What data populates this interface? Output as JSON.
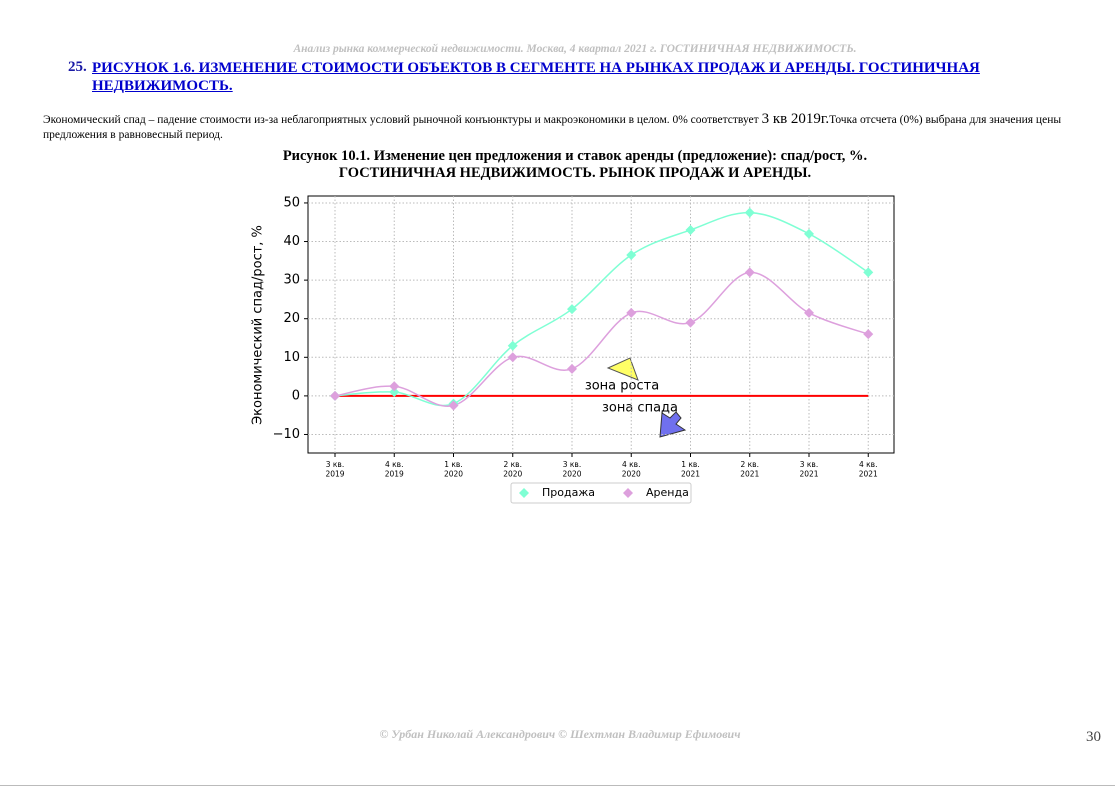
{
  "header": "Анализ рынка коммерческой недвижимости.  Москва, 4 квартал 2021 г.  ГОСТИНИЧНАЯ НЕДВИЖИМОСТЬ.",
  "heading": {
    "number": "25.",
    "title": "РИСУНОК 1.6. ИЗМЕНЕНИЕ СТОИМОСТИ ОБЪЕКТОВ В СЕГМЕНТЕ НА РЫНКАХ ПРОДАЖ И АРЕНДЫ. ГОСТИНИЧНАЯ НЕДВИЖИМОСТЬ."
  },
  "paragraph": [
    "Экономический спад – падение стоимости из-за неблагоприятных условий рыночной конъюнктуры и макроэкономики в целом. 0% соответствует",
    "3 кв 2019г.",
    "Точка отсчета (0%) выбрана для значения цены предложения в равновесный период."
  ],
  "figure_caption": [
    "Рисунок 10.1. Изменение цен предложения и ставок аренды (предложение): спад/рост, %.",
    "ГОСТИНИЧНАЯ НЕДВИЖИМОСТЬ. РЫНОК ПРОДАЖ И АРЕНДЫ."
  ],
  "chart_data": {
    "type": "line",
    "y_label": "Экономический спад/рост, %",
    "categories": [
      "3 кв. 2019",
      "4 кв. 2019",
      "1 кв. 2020",
      "2 кв. 2020",
      "3 кв. 2020",
      "4 кв. 2020",
      "1 кв. 2021",
      "2 кв. 2021",
      "3 кв. 2021",
      "4 кв. 2021"
    ],
    "series": [
      {
        "name": "Продажа",
        "color": "#7fffd4",
        "values": [
          0,
          1,
          -2,
          13,
          22.5,
          36.5,
          43,
          47.5,
          42,
          32
        ]
      },
      {
        "name": "Аренда",
        "color": "#dda0dd",
        "values": [
          0,
          2.5,
          -2.5,
          10,
          7,
          21.5,
          19,
          32,
          21.5,
          16
        ]
      }
    ],
    "ylim": [
      -14.8,
      51.8
    ],
    "yticks": [
      {
        "value": -10,
        "label": "−10"
      },
      0,
      10,
      20,
      30,
      40,
      50
    ],
    "grid": true,
    "smooth": true,
    "hline": {
      "y": 0,
      "color": "#ff0000"
    },
    "annotations": [
      "зона роста",
      "зона спада"
    ],
    "legend": "bottom"
  },
  "footer": "© Урбан Николай Александрович   © Шехтман Владимир Ефимович",
  "page_number": 30
}
